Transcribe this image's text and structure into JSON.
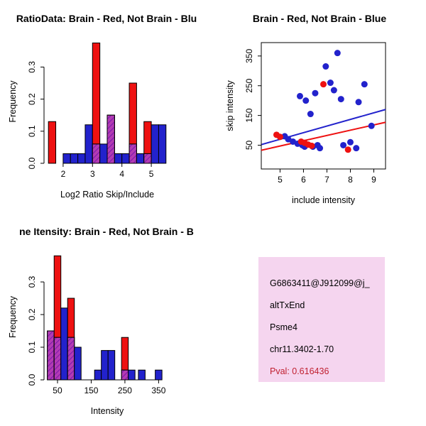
{
  "colors": {
    "red": "#EE1111",
    "blue": "#2222CC",
    "overlap": "#B33BB3",
    "overlap_hatch": "#6A0DAD"
  },
  "chart_data": [
    {
      "id": "ratio-histogram",
      "type": "bar",
      "title": "RatioData: Brain - Red, Not Brain - Blu",
      "xlabel": "Log2 Ratio Skip/Include",
      "ylabel": "Frequency",
      "xlim": [
        1.35,
        5.65
      ],
      "ylim": [
        0,
        0.385
      ],
      "xticks": {
        "values": [
          2,
          3,
          4,
          5
        ],
        "labels": [
          "2",
          "3",
          "4",
          "5"
        ]
      },
      "yticks": {
        "values": [
          0,
          0.1,
          0.2,
          0.3
        ],
        "labels": [
          "0.0",
          "0.1",
          "0.2",
          "0.3"
        ]
      },
      "bin_width": 0.25,
      "bins": [
        {
          "x": 1.5,
          "red": 0.13,
          "blue": 0
        },
        {
          "x": 2.0,
          "red": 0,
          "blue": 0.03
        },
        {
          "x": 2.25,
          "red": 0,
          "blue": 0.03
        },
        {
          "x": 2.5,
          "red": 0,
          "blue": 0.03
        },
        {
          "x": 2.75,
          "red": 0,
          "blue": 0.12
        },
        {
          "x": 3.0,
          "red": 0.375,
          "blue": 0.06
        },
        {
          "x": 3.25,
          "red": 0,
          "blue": 0.06
        },
        {
          "x": 3.5,
          "red": 0.15,
          "blue": 0.15
        },
        {
          "x": 3.75,
          "red": 0,
          "blue": 0.03
        },
        {
          "x": 4.0,
          "red": 0,
          "blue": 0.03
        },
        {
          "x": 4.25,
          "red": 0.25,
          "blue": 0.06
        },
        {
          "x": 4.5,
          "red": 0,
          "blue": 0.03
        },
        {
          "x": 4.75,
          "red": 0.13,
          "blue": 0.03
        },
        {
          "x": 5.0,
          "red": 0,
          "blue": 0.12
        },
        {
          "x": 5.25,
          "red": 0,
          "blue": 0.12
        }
      ]
    },
    {
      "id": "intensity-scatter",
      "type": "scatter",
      "title": "Brain - Red, Not Brain - Blue",
      "xlabel": "include intensity",
      "ylabel": "skip intensity",
      "xlim": [
        4.2,
        9.5
      ],
      "ylim": [
        -30,
        395
      ],
      "xticks": {
        "values": [
          5,
          6,
          7,
          8,
          9
        ],
        "labels": [
          "5",
          "6",
          "7",
          "8",
          "9"
        ]
      },
      "yticks": {
        "values": [
          50,
          150,
          250,
          350
        ],
        "labels": [
          "50",
          "150",
          "250",
          "350"
        ]
      },
      "series": [
        {
          "name": "not-brain",
          "color_key": "blue",
          "points": [
            [
              5.2,
              80
            ],
            [
              5.35,
              70
            ],
            [
              5.55,
              62
            ],
            [
              5.75,
              55
            ],
            [
              5.85,
              215
            ],
            [
              5.95,
              50
            ],
            [
              6.05,
              45
            ],
            [
              6.1,
              200
            ],
            [
              6.3,
              155
            ],
            [
              6.4,
              45
            ],
            [
              6.5,
              225
            ],
            [
              6.6,
              50
            ],
            [
              6.7,
              40
            ],
            [
              6.95,
              315
            ],
            [
              7.15,
              260
            ],
            [
              7.3,
              235
            ],
            [
              7.45,
              360
            ],
            [
              7.6,
              205
            ],
            [
              7.7,
              50
            ],
            [
              8.0,
              60
            ],
            [
              8.25,
              40
            ],
            [
              8.35,
              195
            ],
            [
              8.6,
              255
            ],
            [
              8.9,
              115
            ]
          ]
        },
        {
          "name": "brain",
          "color_key": "red",
          "points": [
            [
              4.85,
              85
            ],
            [
              5.0,
              78
            ],
            [
              5.9,
              62
            ],
            [
              6.05,
              58
            ],
            [
              6.2,
              52
            ],
            [
              6.35,
              48
            ],
            [
              6.85,
              255
            ],
            [
              7.9,
              35
            ]
          ]
        }
      ],
      "fit_lines": [
        {
          "color_key": "blue",
          "x": [
            4.2,
            9.5
          ],
          "y": [
            52,
            170
          ]
        },
        {
          "color_key": "red",
          "x": [
            4.2,
            9.5
          ],
          "y": [
            33,
            127
          ]
        }
      ]
    },
    {
      "id": "gene-intensity-histogram",
      "type": "bar",
      "title": "ne Itensity: Brain - Red, Not Brain - B",
      "xlabel": "Intensity",
      "ylabel": "Frequency",
      "xlim": [
        10,
        385
      ],
      "ylim": [
        0,
        0.385
      ],
      "xticks": {
        "values": [
          50,
          150,
          250,
          350
        ],
        "labels": [
          "50",
          "150",
          "250",
          "350"
        ]
      },
      "yticks": {
        "values": [
          0,
          0.1,
          0.2,
          0.3
        ],
        "labels": [
          "0.0",
          "0.1",
          "0.2",
          "0.3"
        ]
      },
      "bin_width": 20,
      "bins": [
        {
          "x": 20,
          "red": 0.15,
          "blue": 0.15
        },
        {
          "x": 40,
          "red": 0.38,
          "blue": 0.13
        },
        {
          "x": 60,
          "red": 0,
          "blue": 0.22
        },
        {
          "x": 80,
          "red": 0.25,
          "blue": 0.13
        },
        {
          "x": 100,
          "red": 0,
          "blue": 0.1
        },
        {
          "x": 160,
          "red": 0,
          "blue": 0.03
        },
        {
          "x": 180,
          "red": 0,
          "blue": 0.09
        },
        {
          "x": 200,
          "red": 0,
          "blue": 0.09
        },
        {
          "x": 240,
          "red": 0.13,
          "blue": 0.03
        },
        {
          "x": 260,
          "red": 0,
          "blue": 0.03
        },
        {
          "x": 290,
          "red": 0,
          "blue": 0.03
        },
        {
          "x": 340,
          "red": 0,
          "blue": 0.03
        }
      ]
    }
  ],
  "info_card": {
    "bg": "#F5D5EF",
    "pval_color": "#C02030",
    "lines": [
      "G6863411@J912099@j_",
      "altTxEnd",
      "Psme4",
      "chr11.3402-1.70",
      "Pval: 0.616436"
    ]
  }
}
